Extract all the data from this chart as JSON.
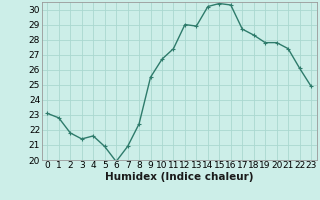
{
  "x": [
    0,
    1,
    2,
    3,
    4,
    5,
    6,
    7,
    8,
    9,
    10,
    11,
    12,
    13,
    14,
    15,
    16,
    17,
    18,
    19,
    20,
    21,
    22,
    23
  ],
  "y": [
    23.1,
    22.8,
    21.8,
    21.4,
    21.6,
    20.9,
    19.9,
    20.9,
    22.4,
    25.5,
    26.7,
    27.4,
    29.0,
    28.9,
    30.2,
    30.4,
    30.3,
    28.7,
    28.3,
    27.8,
    27.8,
    27.4,
    26.1,
    24.9
  ],
  "line_color": "#2e7b6b",
  "marker": "+",
  "marker_size": 3,
  "background_color": "#cceee8",
  "grid_color": "#aad8d0",
  "xlabel": "Humidex (Indice chaleur)",
  "ylabel": "",
  "ylim": [
    20,
    30.5
  ],
  "xlim": [
    -0.5,
    23.5
  ],
  "yticks": [
    20,
    21,
    22,
    23,
    24,
    25,
    26,
    27,
    28,
    29,
    30
  ],
  "xticks": [
    0,
    1,
    2,
    3,
    4,
    5,
    6,
    7,
    8,
    9,
    10,
    11,
    12,
    13,
    14,
    15,
    16,
    17,
    18,
    19,
    20,
    21,
    22,
    23
  ],
  "xlabel_fontsize": 7.5,
  "tick_fontsize": 6.5,
  "line_width": 1.0,
  "marker_edge_width": 0.8
}
